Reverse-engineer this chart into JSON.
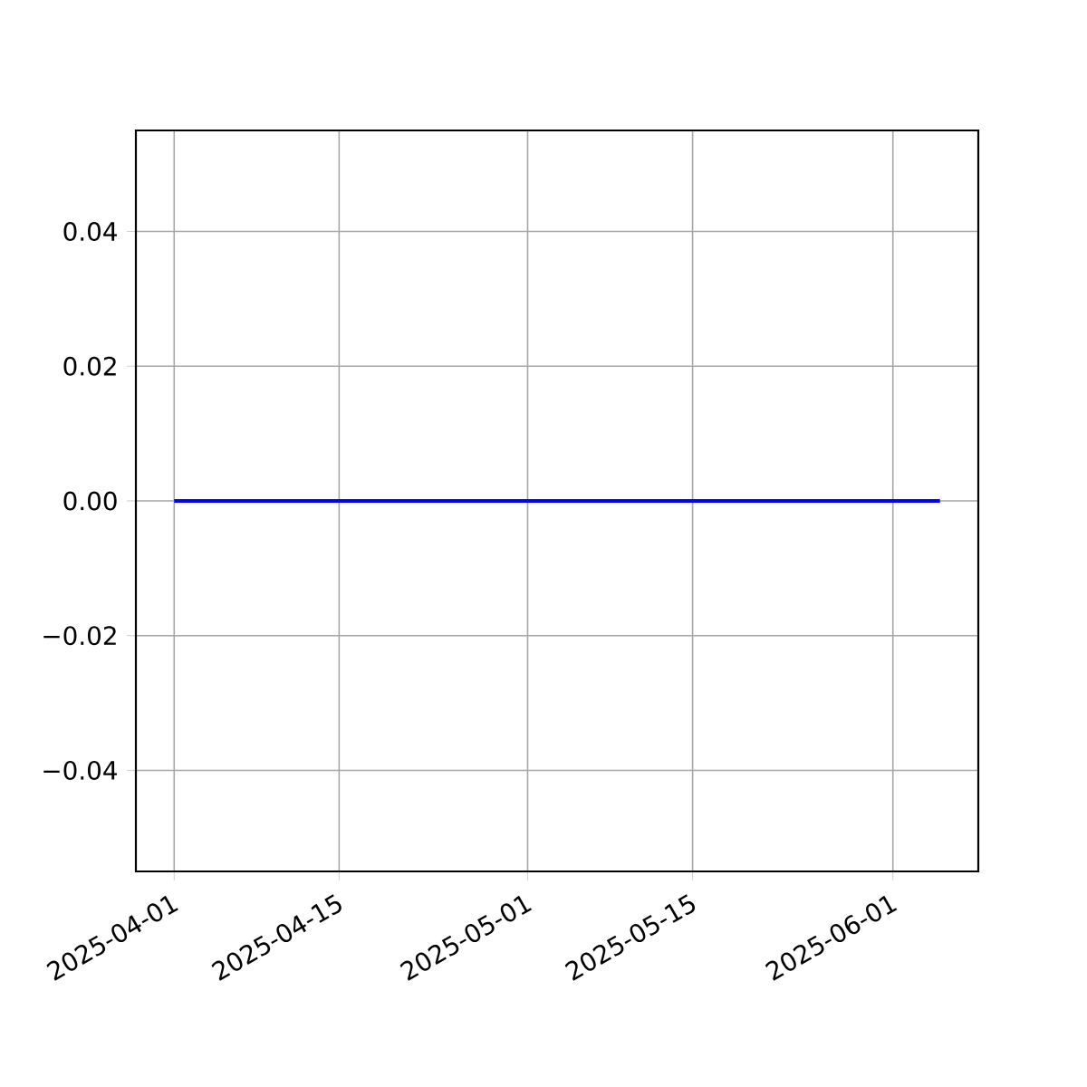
{
  "chart_data": {
    "type": "line",
    "x": [
      "2025-04-01",
      "2025-06-05"
    ],
    "series": [
      {
        "color": "#0000ff",
        "values": [
          0,
          0
        ]
      }
    ],
    "xlim": [
      "2025-03-28T18:00",
      "2025-06-08T06:00"
    ],
    "xticks": [
      "2025-04-01",
      "2025-04-15",
      "2025-05-01",
      "2025-05-15",
      "2025-06-01"
    ],
    "ylim": [
      -0.055,
      0.055
    ],
    "yticks": [
      {
        "value": -0.04,
        "label": "−0.04"
      },
      {
        "value": -0.02,
        "label": "−0.02"
      },
      {
        "value": 0,
        "label": "0.00"
      },
      {
        "value": 0.02,
        "label": "0.02"
      },
      {
        "value": 0.04,
        "label": "0.04"
      }
    ],
    "grid": true
  }
}
